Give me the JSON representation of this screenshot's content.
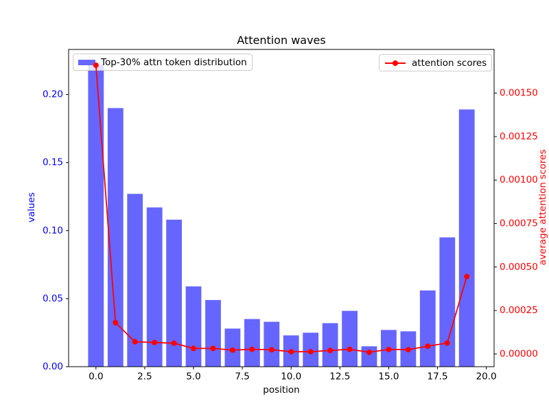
{
  "chart_data": {
    "type": "bar",
    "title": "Attention waves",
    "xlabel": "position",
    "ylabel_left": "values",
    "ylabel_right": "average attention scores",
    "x": [
      0,
      1,
      2,
      3,
      4,
      5,
      6,
      7,
      8,
      9,
      10,
      11,
      12,
      13,
      14,
      15,
      16,
      17,
      18,
      19
    ],
    "series": [
      {
        "name": "Top-30% attn token distribution",
        "type": "bar",
        "axis": "left",
        "color": "#6666ff",
        "values": [
          0.222,
          0.19,
          0.127,
          0.117,
          0.108,
          0.059,
          0.049,
          0.028,
          0.035,
          0.033,
          0.023,
          0.025,
          0.032,
          0.041,
          0.015,
          0.027,
          0.026,
          0.056,
          0.095,
          0.189
        ]
      },
      {
        "name": "attention scores",
        "type": "line",
        "axis": "right",
        "color": "#ff0000",
        "marker": "circle",
        "values": [
          0.00166,
          0.00018,
          7e-05,
          6.6e-05,
          6.2e-05,
          3.2e-05,
          3.2e-05,
          2.2e-05,
          2.7e-05,
          2.4e-05,
          1.3e-05,
          1.3e-05,
          2e-05,
          2.7e-05,
          1e-05,
          2.6e-05,
          2.5e-05,
          4.5e-05,
          6.3e-05,
          0.000445
        ]
      }
    ],
    "x_axis": {
      "lim": [
        -1.4,
        20.4
      ],
      "ticks": [
        0,
        2.5,
        5,
        7.5,
        10,
        12.5,
        15,
        17.5,
        20
      ],
      "tick_labels": [
        "0.0",
        "2.5",
        "5.0",
        "7.5",
        "10.0",
        "12.5",
        "15.0",
        "17.5",
        "20.0"
      ],
      "text_color": "#000000"
    },
    "left_axis": {
      "lim": [
        0,
        0.2331
      ],
      "ticks": [
        0,
        0.05,
        0.1,
        0.15,
        0.2
      ],
      "tick_labels": [
        "0.00",
        "0.05",
        "0.10",
        "0.15",
        "0.20"
      ],
      "text_color": "#0000ff"
    },
    "right_axis": {
      "lim": [
        -7.3e-05,
        0.001751
      ],
      "ticks": [
        0,
        0.00025,
        0.0005,
        0.00075,
        0.001,
        0.00125,
        0.0015
      ],
      "tick_labels": [
        "0.00000",
        "0.00025",
        "0.00050",
        "0.00075",
        "0.00100",
        "0.00125",
        "0.00150"
      ],
      "text_color": "#ff0000"
    },
    "legend_positions": [
      "upper left",
      "upper right"
    ],
    "grid": false,
    "bar_width_data_units": 0.8,
    "colors": {
      "bar": "#6666ff",
      "line": "#ff0000",
      "spine": "#000000",
      "legend_border": "#cccccc"
    }
  }
}
